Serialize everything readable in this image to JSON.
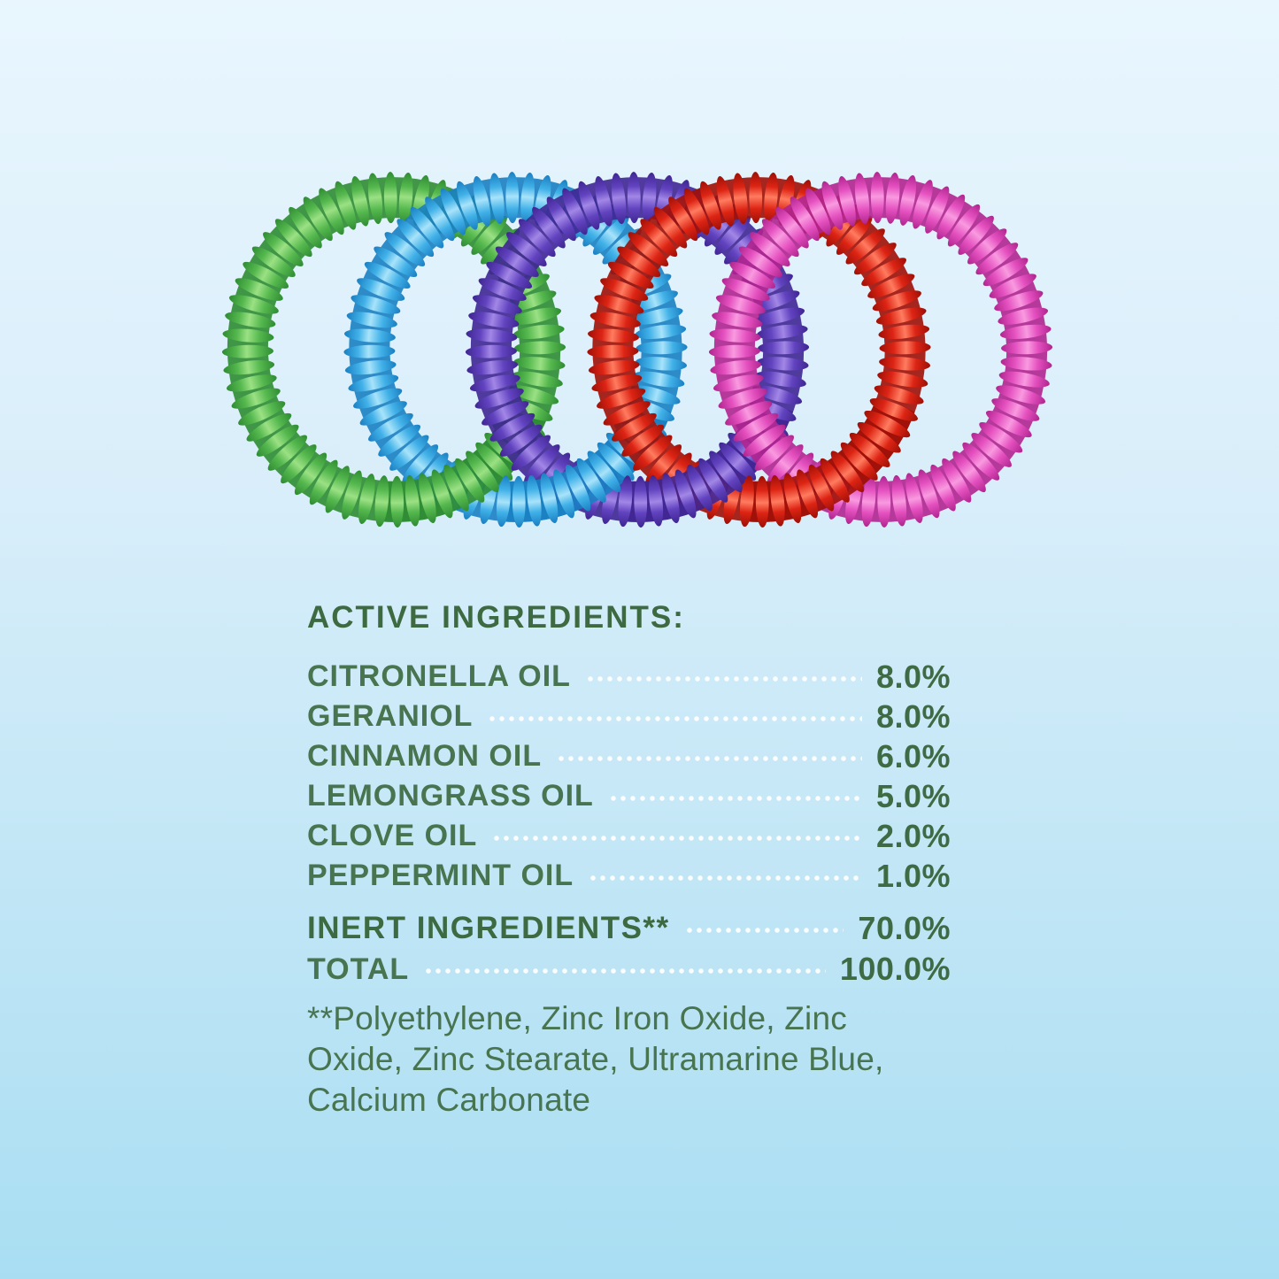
{
  "background": {
    "gradient_top": "#e9f6fe",
    "gradient_bottom": "#a9def2"
  },
  "text_colors": {
    "heading": "#3e6a42",
    "body": "#487450",
    "value": "#3f6b44",
    "leader_dots": "#ffffff"
  },
  "ingredients": {
    "heading": "ACTIVE INGREDIENTS:",
    "active": [
      {
        "label": "CITRONELLA OIL",
        "value": "8.0%"
      },
      {
        "label": "GERANIOL",
        "value": "8.0%"
      },
      {
        "label": "CINNAMON OIL",
        "value": "6.0%"
      },
      {
        "label": "LEMONGRASS OIL",
        "value": "5.0%"
      },
      {
        "label": "CLOVE OIL",
        "value": "2.0%"
      },
      {
        "label": "PEPPERMINT OIL",
        "value": "1.0%"
      }
    ],
    "inert": {
      "label": "INERT INGREDIENTS**",
      "value": "70.0%"
    },
    "total": {
      "label": "TOTAL",
      "value": "100.0%"
    },
    "footnote_lines": [
      "**Polyethylene, Zinc Iron Oxide, Zinc",
      "Oxide, Zinc Stearate, Ultramarine Blue,",
      "Calcium Carbonate"
    ]
  },
  "bracelets": [
    {
      "name": "green",
      "base": "#55b84e",
      "light": "#9be184",
      "dark": "#2f8c33"
    },
    {
      "name": "blue",
      "base": "#41b1e8",
      "light": "#a8e3fa",
      "dark": "#1a7fc2"
    },
    {
      "name": "purple",
      "base": "#6243c0",
      "light": "#a287e6",
      "dark": "#3f2692"
    },
    {
      "name": "red",
      "base": "#dd2414",
      "light": "#ff7c60",
      "dark": "#9e1007"
    },
    {
      "name": "pink",
      "base": "#e551c0",
      "light": "#f99ae0",
      "dark": "#b0258f"
    }
  ]
}
